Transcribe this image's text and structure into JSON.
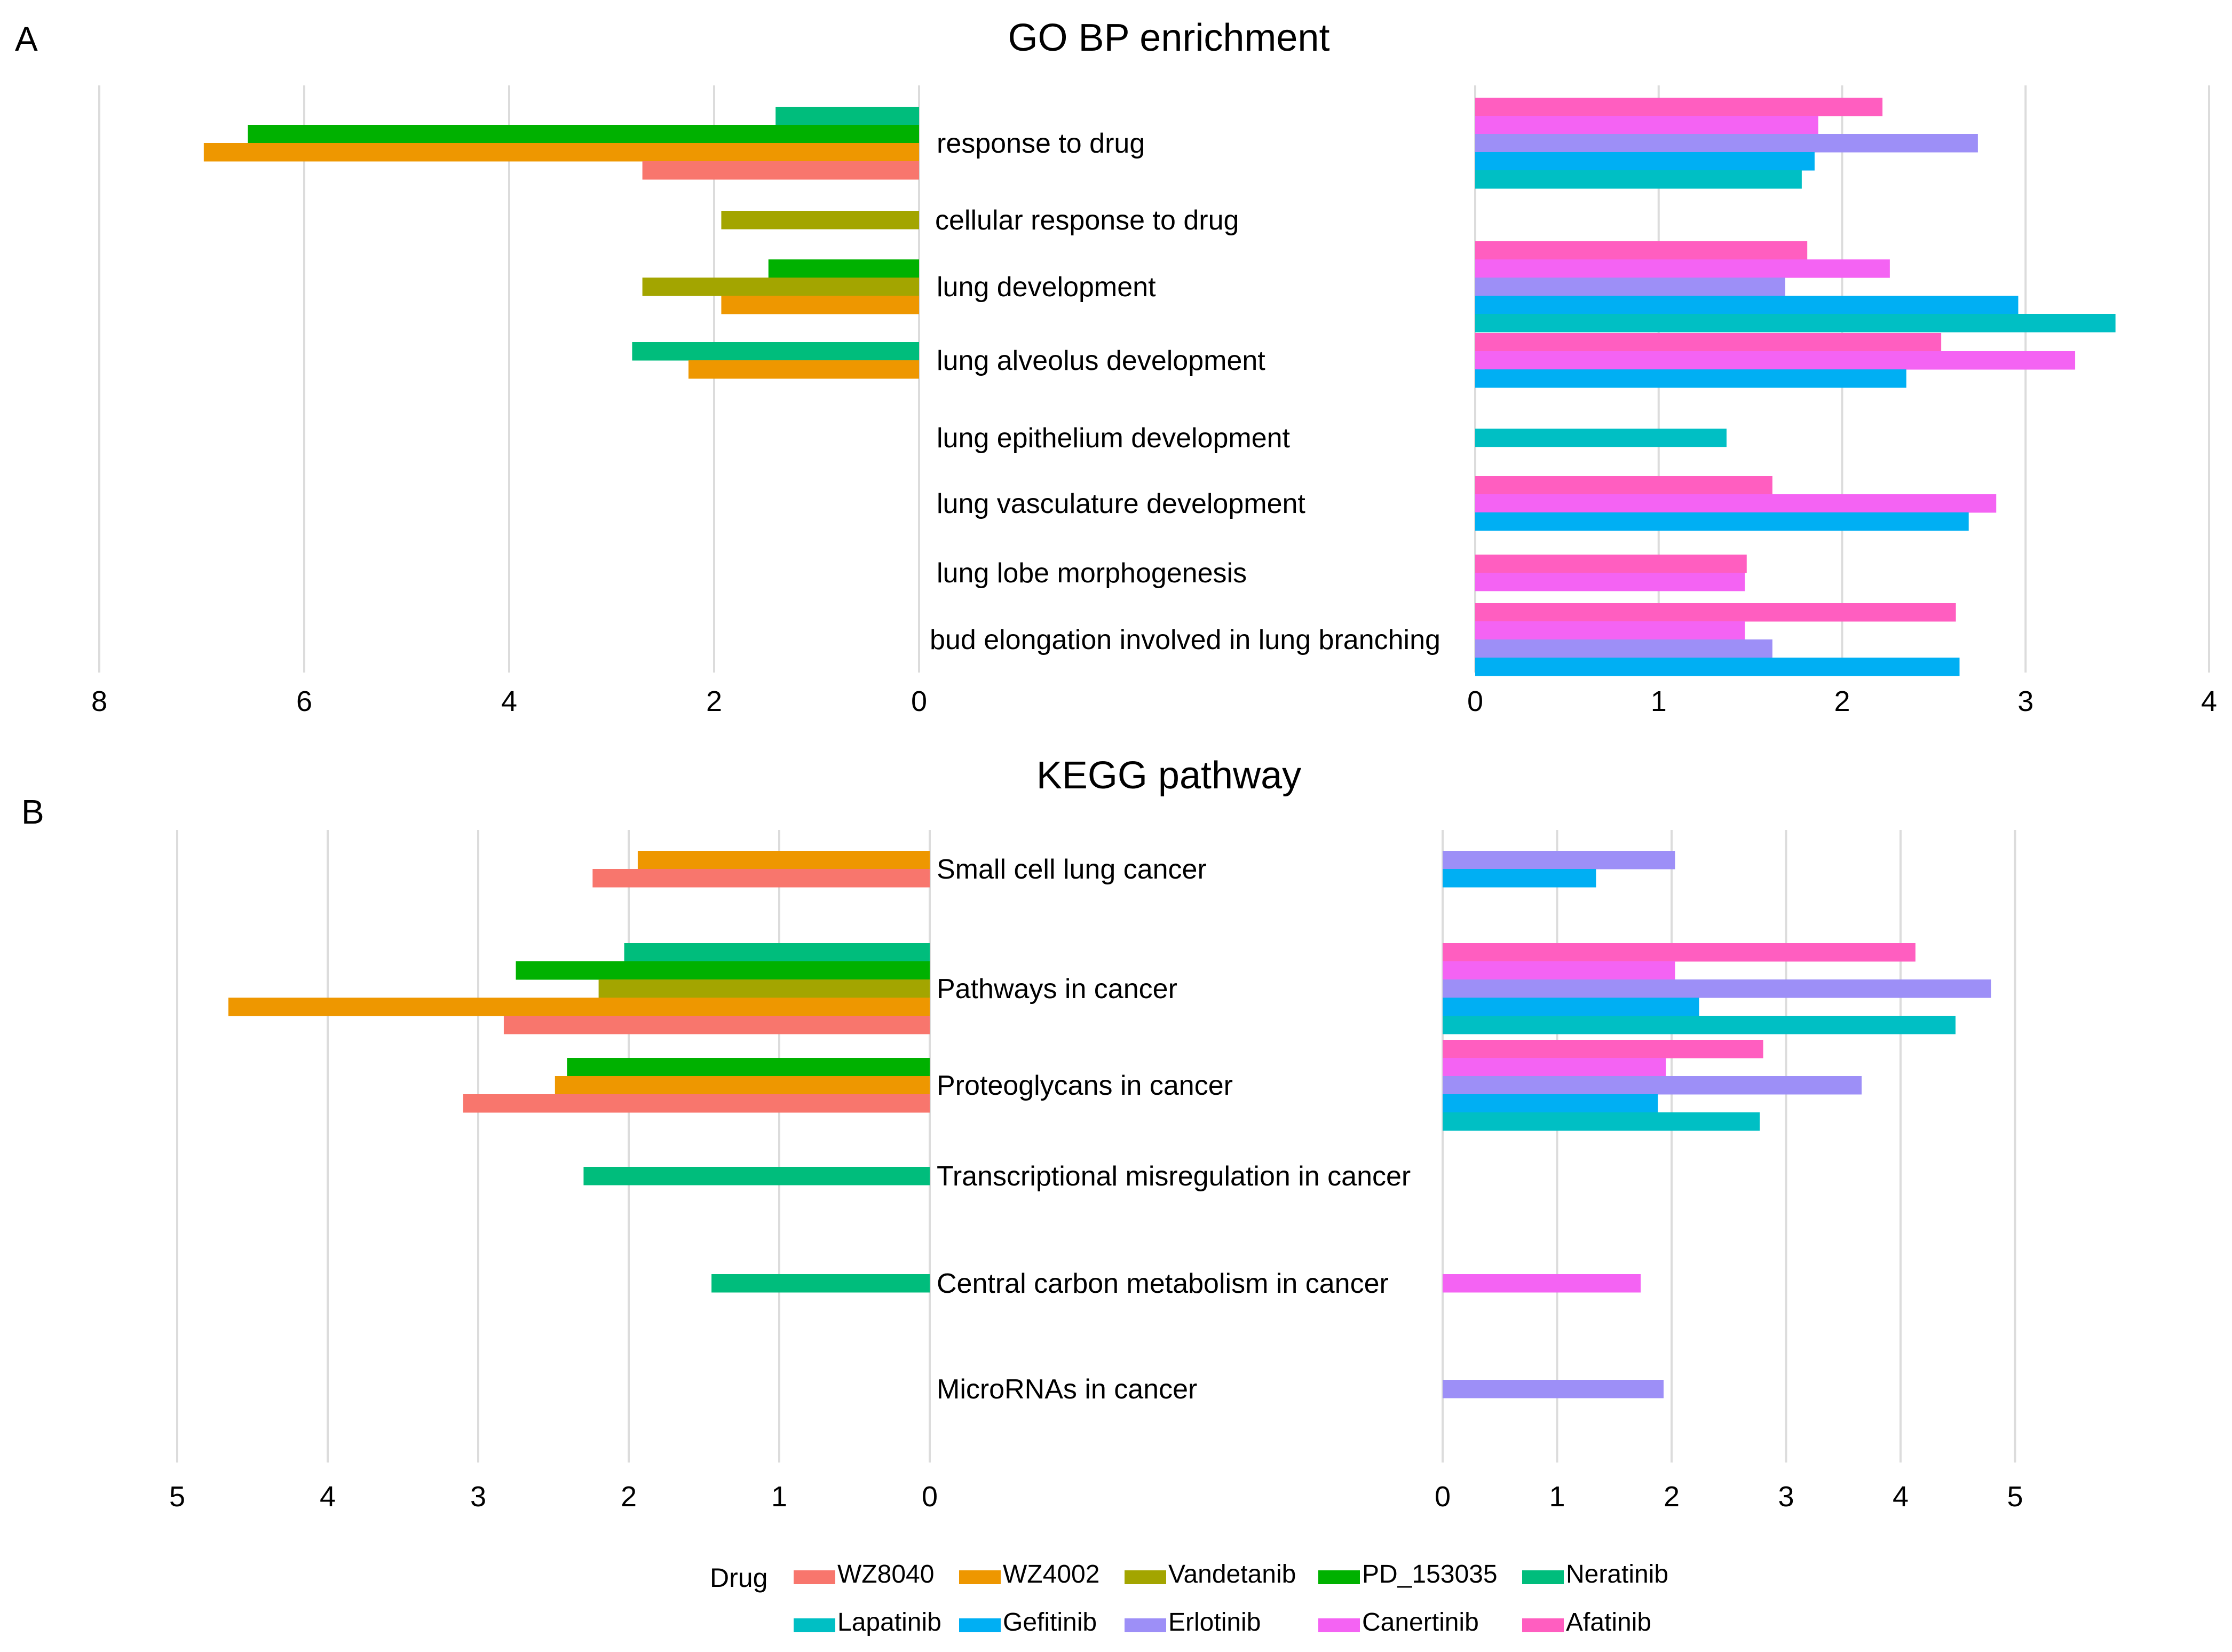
{
  "chart_data": [
    {
      "panel": "A",
      "type": "bar",
      "orientation": "horizontal",
      "title": "GO BP enrichment",
      "categories": [
        "response to drug",
        "cellular response to drug",
        "lung development",
        "lung alveolus development",
        "lung epithelium development",
        "lung vasculature development",
        "lung lobe morphogenesis",
        "bud elongation involved in lung branching"
      ],
      "left_axis": {
        "ticks": [
          "8",
          "6",
          "4",
          "2",
          "0"
        ],
        "range": [
          8,
          0
        ],
        "grid": true,
        "series": [
          {
            "name": "Neratinib",
            "values": [
              1.4,
              null,
              null,
              2.8,
              null,
              null,
              null,
              null
            ]
          },
          {
            "name": "PD_153035",
            "values": [
              6.55,
              null,
              1.47,
              null,
              null,
              null,
              null,
              null
            ]
          },
          {
            "name": "Vandetanib",
            "values": [
              null,
              1.93,
              2.7,
              null,
              null,
              null,
              null,
              null
            ]
          },
          {
            "name": "WZ4002",
            "values": [
              6.98,
              null,
              1.93,
              2.25,
              null,
              null,
              null,
              null
            ]
          },
          {
            "name": "WZ8040",
            "values": [
              2.7,
              null,
              null,
              null,
              null,
              null,
              null,
              null
            ]
          }
        ]
      },
      "right_axis": {
        "ticks": [
          "0",
          "1",
          "2",
          "3",
          "4"
        ],
        "range": [
          0,
          4
        ],
        "grid": true,
        "series": [
          {
            "name": "Afatinib",
            "values": [
              2.22,
              null,
              1.81,
              2.54,
              null,
              1.62,
              1.48,
              2.62
            ]
          },
          {
            "name": "Canertinib",
            "values": [
              1.87,
              null,
              2.26,
              3.27,
              null,
              2.84,
              1.47,
              1.47
            ]
          },
          {
            "name": "Erlotinib",
            "values": [
              2.74,
              null,
              1.69,
              null,
              null,
              null,
              null,
              1.62
            ]
          },
          {
            "name": "Gefitinib",
            "values": [
              1.85,
              null,
              2.96,
              2.35,
              null,
              2.69,
              null,
              2.64
            ]
          },
          {
            "name": "Lapatinib",
            "values": [
              1.78,
              null,
              3.49,
              null,
              1.37,
              null,
              null,
              null
            ]
          }
        ]
      }
    },
    {
      "panel": "B",
      "type": "bar",
      "orientation": "horizontal",
      "title": "KEGG pathway",
      "categories": [
        "Small cell lung cancer",
        "Pathways in cancer",
        "Proteoglycans in cancer",
        "Transcriptional misregulation in cancer",
        "Central carbon metabolism in cancer",
        "MicroRNAs in cancer"
      ],
      "left_axis": {
        "ticks": [
          "5",
          "4",
          "3",
          "2",
          "1",
          "0"
        ],
        "range": [
          5,
          0
        ],
        "grid": true,
        "series": [
          {
            "name": "Neratinib",
            "values": [
              null,
              2.03,
              null,
              2.3,
              1.45,
              null
            ]
          },
          {
            "name": "PD_153035",
            "values": [
              null,
              2.75,
              2.41,
              null,
              null,
              null
            ]
          },
          {
            "name": "Vandetanib",
            "values": [
              null,
              2.2,
              null,
              null,
              null,
              null
            ]
          },
          {
            "name": "WZ4002",
            "values": [
              1.94,
              4.66,
              2.49,
              null,
              null,
              null
            ]
          },
          {
            "name": "WZ8040",
            "values": [
              2.24,
              2.83,
              3.1,
              null,
              null,
              null
            ]
          }
        ]
      },
      "right_axis": {
        "ticks": [
          "0",
          "1",
          "2",
          "3",
          "4",
          "5"
        ],
        "range": [
          0,
          5
        ],
        "grid": true,
        "series": [
          {
            "name": "Afatinib",
            "values": [
              null,
              4.13,
              2.8,
              null,
              null,
              null
            ]
          },
          {
            "name": "Canertinib",
            "values": [
              null,
              2.03,
              1.95,
              null,
              1.73,
              null
            ]
          },
          {
            "name": "Erlotinib",
            "values": [
              2.03,
              4.79,
              3.66,
              null,
              null,
              1.93
            ]
          },
          {
            "name": "Gefitinib",
            "values": [
              1.34,
              2.24,
              1.88,
              null,
              null,
              null
            ]
          },
          {
            "name": "Lapatinib",
            "values": [
              null,
              4.48,
              2.77,
              null,
              null,
              null
            ]
          }
        ]
      }
    }
  ],
  "legend": {
    "title": "Drug",
    "items": [
      {
        "name": "WZ8040",
        "color": "#f8766d"
      },
      {
        "name": "WZ4002",
        "color": "#ee9700"
      },
      {
        "name": "Vandetanib",
        "color": "#a3a500"
      },
      {
        "name": "PD_153035",
        "color": "#00b100"
      },
      {
        "name": "Neratinib",
        "color": "#00bd7c"
      },
      {
        "name": "Lapatinib",
        "color": "#00bfc4"
      },
      {
        "name": "Gefitinib",
        "color": "#00aff3"
      },
      {
        "name": "Erlotinib",
        "color": "#9d8ff7"
      },
      {
        "name": "Canertinib",
        "color": "#f463f3"
      },
      {
        "name": "Afatinib",
        "color": "#ff5ec0"
      }
    ]
  }
}
